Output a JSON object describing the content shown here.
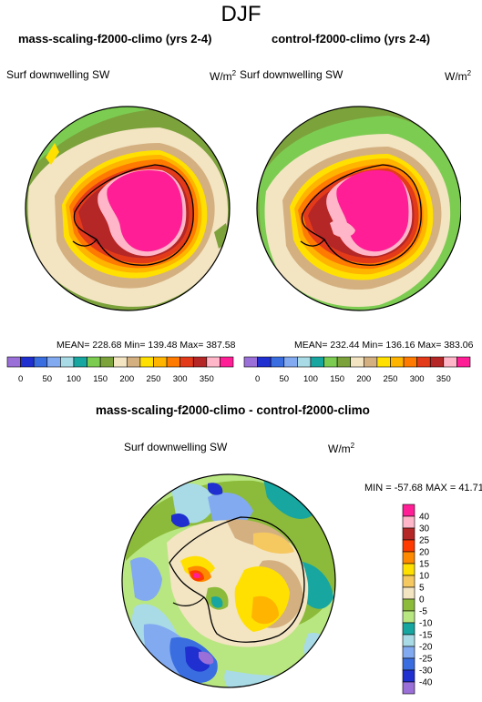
{
  "season": "DJF",
  "panels": [
    {
      "title": "mass-scaling-f2000-climo (yrs 2-4)",
      "variable": "Surf downwelling SW",
      "units_base": "W/m",
      "units_exp": "2",
      "stats": "MEAN= 228.68  Min= 139.48  Max= 387.58"
    },
    {
      "title": "control-f2000-climo (yrs 2-4)",
      "variable": "Surf downwelling SW",
      "units_base": "W/m",
      "units_exp": "2",
      "stats": "MEAN= 232.44  Min= 136.16  Max= 383.06"
    }
  ],
  "colorbar_top": {
    "colors": [
      "#9a6fd8",
      "#1f2fd0",
      "#3a6ee0",
      "#82aaf0",
      "#a8dbe6",
      "#18a6a0",
      "#7ccc52",
      "#7ca23c",
      "#f3e4c2",
      "#d4b080",
      "#ffe000",
      "#ffb400",
      "#ff7a00",
      "#e33a1a",
      "#b52626",
      "#ffb6c8",
      "#ff1e96"
    ],
    "labels": [
      "0",
      "50",
      "100",
      "150",
      "200",
      "250",
      "300",
      "350"
    ]
  },
  "diff_panel": {
    "title": "mass-scaling-f2000-climo - control-f2000-climo",
    "variable": "Surf downwelling SW",
    "units_base": "W/m",
    "units_exp": "2",
    "minmax": "MIN = -57.68 MAX =  41.71"
  },
  "colorbar_diff": {
    "colors": [
      "#ff1e96",
      "#ffb6c8",
      "#b52626",
      "#ff3a00",
      "#ff8a00",
      "#ffe000",
      "#f5c860",
      "#f3e4c2",
      "#8cba3a",
      "#b8e680",
      "#18a6a0",
      "#a8dbe6",
      "#82aaf0",
      "#3a6ee0",
      "#1f2fd0",
      "#9a6fd8"
    ],
    "labels": [
      "40",
      "30",
      "25",
      "20",
      "15",
      "10",
      "5",
      "0",
      "-5",
      "-10",
      "-15",
      "-20",
      "-25",
      "-30",
      "-40"
    ]
  }
}
